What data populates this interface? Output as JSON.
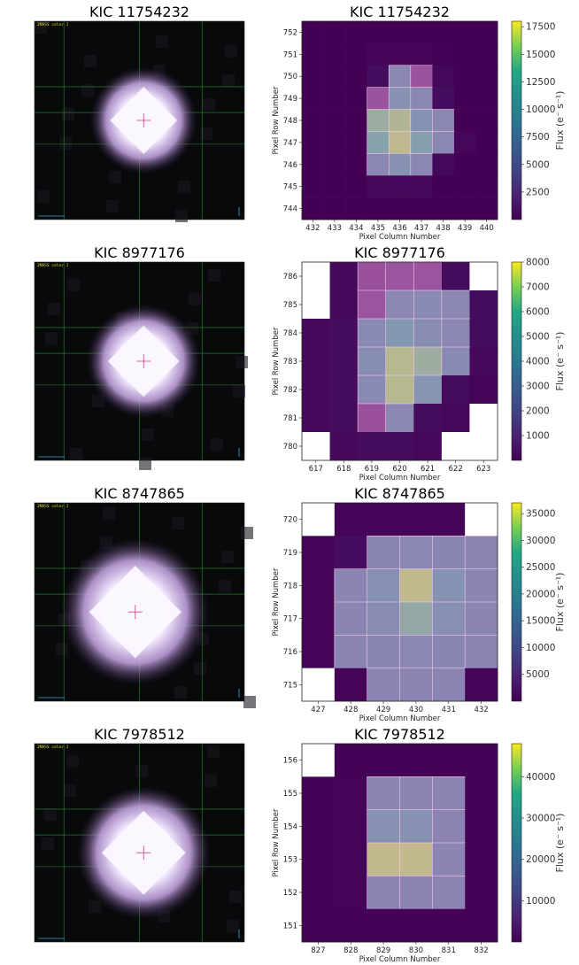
{
  "figure": {
    "panels": [
      {
        "star": "KIC 11754232",
        "image_title": "KIC 11754232",
        "image_header": "2MASS color J",
        "star_offset": [
          0.52,
          0.5
        ],
        "star_size": 0.16,
        "chart_data": {
          "type": "heatmap",
          "title": "KIC 11754232",
          "xlabel": "Pixel Column Number",
          "ylabel": "Pixel Row Number",
          "colorbar_label": "Flux (e⁻ s⁻¹)",
          "x_ticks": [
            432,
            433,
            434,
            435,
            436,
            437,
            438,
            439,
            440
          ],
          "y_ticks": [
            752,
            751,
            750,
            749,
            748,
            747,
            746,
            745,
            744
          ],
          "vmin": 0,
          "vmax": 18000,
          "colorbar_ticks": [
            2500,
            5000,
            7500,
            10000,
            12500,
            15000,
            17500
          ],
          "cols": [
            432,
            433,
            434,
            435,
            436,
            437,
            438,
            439,
            440
          ],
          "rows": [
            752,
            751,
            750,
            749,
            748,
            747,
            746,
            745,
            744
          ],
          "grid": [
            [
              0,
              0,
              0,
              0,
              0,
              0,
              0,
              0,
              0
            ],
            [
              0,
              0,
              0,
              200,
              300,
              250,
              150,
              0,
              0
            ],
            [
              0,
              0,
              0,
              800,
              9000,
              1500,
              400,
              0,
              0
            ],
            [
              0,
              0,
              0,
              1500,
              10500,
              9000,
              800,
              0,
              0
            ],
            [
              0,
              0,
              0,
              14500,
              15500,
              11000,
              9000,
              0,
              0
            ],
            [
              0,
              0,
              0,
              13500,
              16000,
              13000,
              9000,
              400,
              0
            ],
            [
              0,
              0,
              0,
              9000,
              10500,
              9000,
              500,
              0,
              0
            ],
            [
              0,
              0,
              0,
              400,
              600,
              400,
              0,
              0,
              0
            ],
            [
              0,
              0,
              0,
              0,
              0,
              0,
              0,
              0,
              0
            ]
          ]
        }
      },
      {
        "star": "KIC 8977176",
        "image_title": "KIC 8977176",
        "image_header": "2MASS color J",
        "star_offset": [
          0.52,
          0.5
        ],
        "star_size": 0.17,
        "chart_data": {
          "type": "heatmap",
          "title": "KIC 8977176",
          "xlabel": "Pixel Column Number",
          "ylabel": "Pixel Row Number",
          "colorbar_label": "Flux (e⁻ s⁻¹)",
          "x_ticks": [
            617,
            618,
            619,
            620,
            621,
            622,
            623
          ],
          "y_ticks": [
            786,
            785,
            784,
            783,
            782,
            781,
            780
          ],
          "vmin": 0,
          "vmax": 8000,
          "colorbar_ticks": [
            1000,
            2000,
            3000,
            4000,
            5000,
            6000,
            7000,
            8000
          ],
          "cols": [
            617,
            618,
            619,
            620,
            621,
            622,
            623
          ],
          "rows": [
            786,
            785,
            784,
            783,
            782,
            781,
            780
          ],
          "grid": [
            [
              null,
              200,
              600,
              800,
              700,
              300,
              null
            ],
            [
              null,
              200,
              700,
              4000,
              4200,
              4000,
              300
            ],
            [
              200,
              300,
              4200,
              5200,
              4300,
              4000,
              300
            ],
            [
              200,
              300,
              4500,
              7000,
              6500,
              4200,
              200
            ],
            [
              200,
              300,
              4200,
              7000,
              5000,
              300,
              100
            ],
            [
              200,
              300,
              600,
              4000,
              300,
              200,
              null
            ],
            [
              null,
              200,
              300,
              300,
              200,
              null,
              null
            ]
          ]
        }
      },
      {
        "star": "KIC 8747865",
        "image_title": "KIC 8747865",
        "image_header": "2MASS color J",
        "star_offset": [
          0.48,
          0.55
        ],
        "star_size": 0.22,
        "chart_data": {
          "type": "heatmap",
          "title": "KIC 8747865",
          "xlabel": "Pixel Column Number",
          "ylabel": "Pixel Row Number",
          "colorbar_label": "Flux (e⁻ s⁻¹)",
          "x_ticks": [
            427,
            428,
            429,
            430,
            431,
            432
          ],
          "y_ticks": [
            720,
            719,
            718,
            717,
            716,
            715
          ],
          "vmin": 0,
          "vmax": 37000,
          "colorbar_ticks": [
            5000,
            10000,
            15000,
            20000,
            25000,
            30000,
            35000
          ],
          "cols": [
            427,
            428,
            429,
            430,
            431,
            432
          ],
          "rows": [
            720,
            719,
            718,
            717,
            716,
            715
          ],
          "grid": [
            [
              null,
              500,
              500,
              500,
              500,
              null
            ],
            [
              500,
              1500,
              18000,
              19000,
              18000,
              17500
            ],
            [
              500,
              17500,
              21000,
              33000,
              22000,
              17500
            ],
            [
              500,
              17500,
              20000,
              29000,
              21000,
              17500
            ],
            [
              500,
              17500,
              18000,
              18500,
              18000,
              17500
            ],
            [
              null,
              500,
              17500,
              17500,
              17500,
              500
            ]
          ]
        }
      },
      {
        "star": "KIC 7978512",
        "image_title": "KIC 7978512",
        "image_header": "2MASS color J",
        "star_offset": [
          0.52,
          0.55
        ],
        "star_size": 0.2,
        "chart_data": {
          "type": "heatmap",
          "title": "KIC 7978512",
          "xlabel": "Pixel Column Number",
          "ylabel": "Pixel Row Number",
          "colorbar_label": "Flux (e⁻ s⁻¹)",
          "x_ticks": [
            827,
            828,
            829,
            830,
            831,
            832
          ],
          "y_ticks": [
            156,
            155,
            154,
            153,
            152,
            151
          ],
          "vmin": 0,
          "vmax": 48000,
          "colorbar_ticks": [
            10000,
            20000,
            30000,
            40000
          ],
          "cols": [
            827,
            828,
            829,
            830,
            831,
            832
          ],
          "rows": [
            156,
            155,
            154,
            153,
            152,
            151
          ],
          "grid": [
            [
              null,
              300,
              300,
              300,
              300,
              300
            ],
            [
              300,
              500,
              23000,
              23000,
              22000,
              300
            ],
            [
              300,
              500,
              28000,
              28000,
              22000,
              300
            ],
            [
              300,
              500,
              43000,
              43000,
              23000,
              300
            ],
            [
              300,
              500,
              22000,
              22000,
              22000,
              300
            ],
            [
              300,
              300,
              300,
              300,
              300,
              300
            ]
          ]
        }
      }
    ]
  }
}
